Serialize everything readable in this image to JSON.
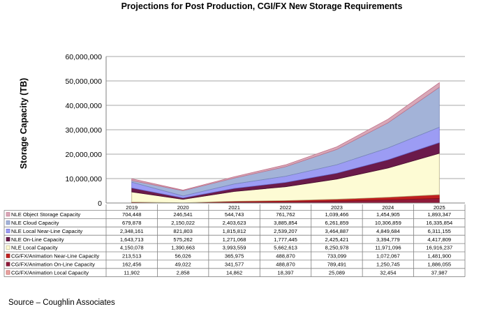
{
  "chart_data": {
    "type": "area",
    "title": "Projections for Post Production, CGI/FX New Storage Requirements",
    "ylabel": "Storage Capacity (TB)",
    "xlabel": "",
    "ylim": [
      0,
      60000000
    ],
    "y_ticks": [
      "0",
      "10,000,000",
      "20,000,000",
      "30,000,000",
      "40,000,000",
      "50,000,000",
      "60,000,000"
    ],
    "y_tick_values": [
      0,
      10000000,
      20000000,
      30000000,
      40000000,
      50000000,
      60000000
    ],
    "categories": [
      "2019",
      "2020",
      "2021",
      "2022",
      "2023",
      "2024",
      "2025"
    ],
    "stacked": true,
    "grid": "horizontal",
    "legend_placement": "data-table-below",
    "series": [
      {
        "name": "CG/FX/Animation Local Capacity",
        "values": [
          11902,
          2858,
          14862,
          18397,
          25089,
          32454,
          37987
        ],
        "display": [
          "11,902",
          "2,858",
          "14,862",
          "18,397",
          "25,089",
          "32,454",
          "37,987"
        ],
        "color": "#e8a4a0",
        "edge": "#c05050"
      },
      {
        "name": "CG/FX/Animation On-Line Capacity",
        "values": [
          162456,
          49022,
          341577,
          488870,
          789491,
          1250745,
          1886055
        ],
        "display": [
          "162,456",
          "49,022",
          "341,577",
          "488,870",
          "789,491",
          "1,250,745",
          "1,886,055"
        ],
        "color": "#8e1a3a",
        "edge": "#6e102a"
      },
      {
        "name": "CG/FX/Animation Near-Line Capacity",
        "values": [
          213513,
          56026,
          365975,
          488870,
          733099,
          1072067,
          1481900
        ],
        "display": [
          "213,513",
          "56,026",
          "365,975",
          "488,870",
          "733,099",
          "1,072,067",
          "1,481,900"
        ],
        "color": "#c02020",
        "edge": "#901010"
      },
      {
        "name": "NLE Local Capacity",
        "values": [
          4150078,
          1390663,
          3993559,
          5662613,
          8250978,
          11971096,
          16916237
        ],
        "display": [
          "4,150,078",
          "1,390,663",
          "3,993,559",
          "5,662,613",
          "8,250,978",
          "11,971,096",
          "16,916,237"
        ],
        "color": "#fdfbd4",
        "edge": "#b8b080"
      },
      {
        "name": "NLE On-Line Capacity",
        "values": [
          1643713,
          575262,
          1271068,
          1777445,
          2425421,
          3394779,
          4417809
        ],
        "display": [
          "1,643,713",
          "575,262",
          "1,271,068",
          "1,777,445",
          "2,425,421",
          "3,394,779",
          "4,417,809"
        ],
        "color": "#6b1a4a",
        "edge": "#4a0e32"
      },
      {
        "name": "NLE Local Near-Line Capacity",
        "values": [
          2348161,
          821803,
          1815812,
          2539207,
          3464887,
          4849684,
          6311155
        ],
        "display": [
          "2,348,161",
          "821,803",
          "1,815,812",
          "2,539,207",
          "3,464,887",
          "4,849,684",
          "6,311,155"
        ],
        "color": "#9c9cf4",
        "edge": "#6a6ad0"
      },
      {
        "name": "NLE Cloud Capacity",
        "values": [
          679878,
          2150022,
          2403623,
          3885854,
          6261859,
          10306859,
          16335854
        ],
        "display": [
          "679,878",
          "2,150,022",
          "2,403,623",
          "3,885,854",
          "6,261,859",
          "10,306,859",
          "16,335,854"
        ],
        "color": "#a3b3d8",
        "edge": "#7888b8"
      },
      {
        "name": "NLE Object Storage Capacity",
        "values": [
          704448,
          246541,
          544743,
          761762,
          1039466,
          1454905,
          1893347
        ],
        "display": [
          "704,448",
          "246,541",
          "544,743",
          "761,762",
          "1,039,466",
          "1,454,905",
          "1,893,347"
        ],
        "color": "#d8a8b8",
        "edge": "#c07088"
      }
    ]
  },
  "table_row_order": [
    7,
    6,
    5,
    4,
    3,
    2,
    1,
    0
  ],
  "source": "Source – Coughlin Associates"
}
